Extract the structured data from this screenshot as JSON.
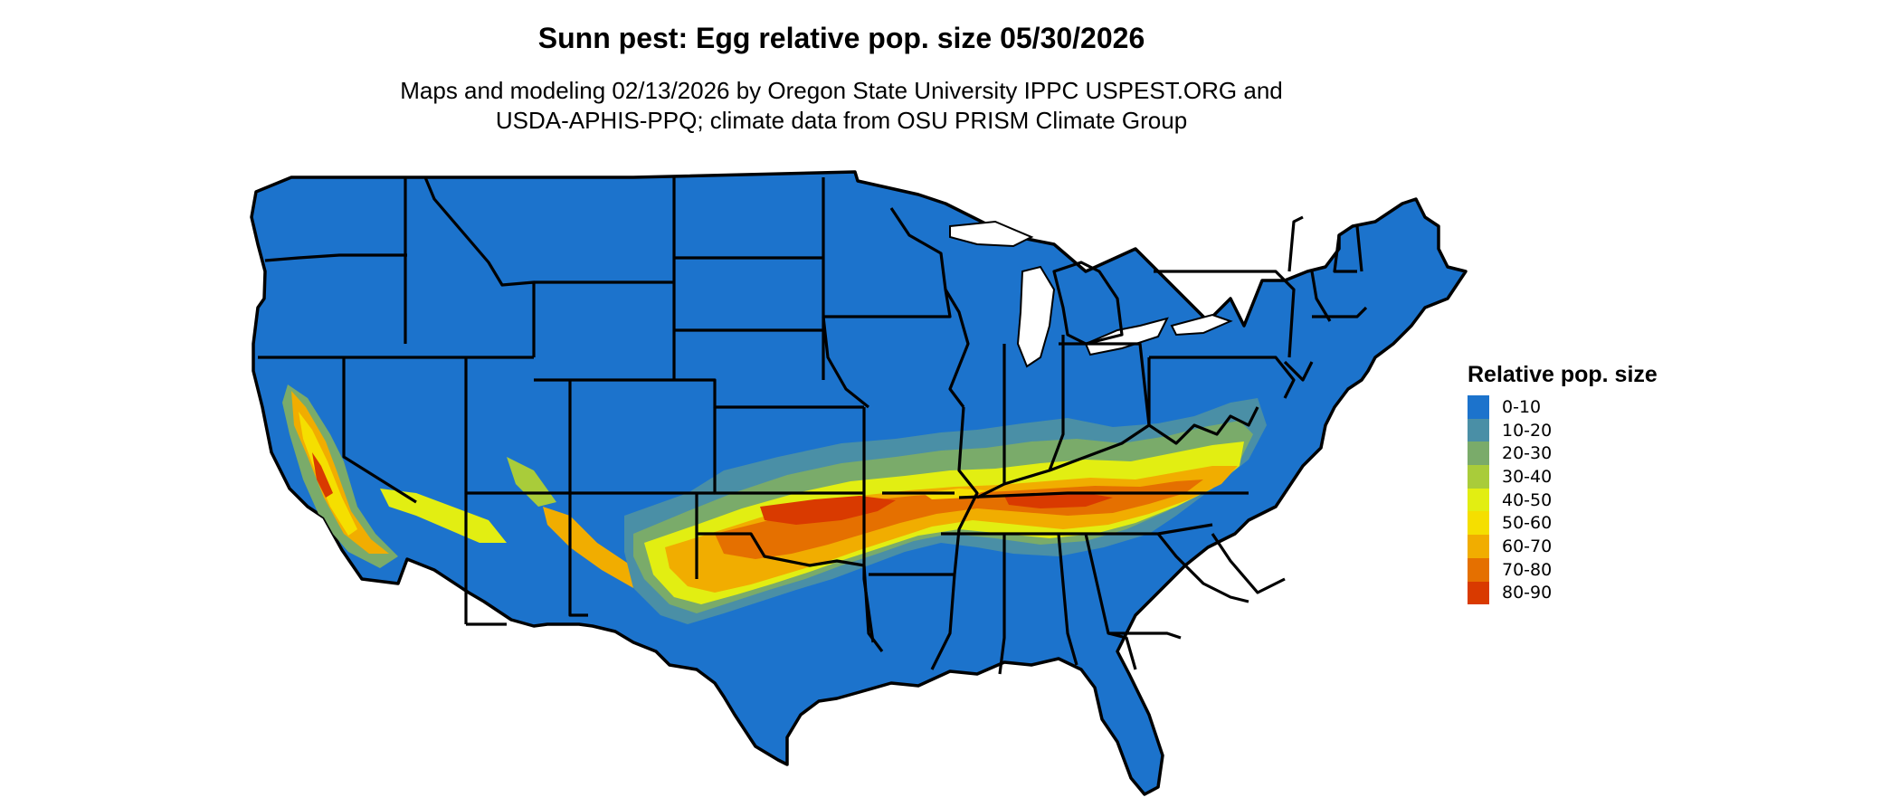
{
  "title": "Sunn pest: Egg relative pop. size 05/30/2026",
  "subtitle": {
    "line1": "Maps and modeling 02/13/2026 by Oregon State University IPPC USPEST.ORG and",
    "line2": "USDA-APHIS-PPQ; climate data from OSU PRISM Climate Group"
  },
  "map": {
    "region": "Contiguous United States",
    "base_color": "#1c73cc",
    "state_border_color": "#000000"
  },
  "legend": {
    "title": "Relative pop. size",
    "items": [
      {
        "label": "0-10",
        "color": "#1c73cc"
      },
      {
        "label": "10-20",
        "color": "#4a8fa6"
      },
      {
        "label": "20-30",
        "color": "#7aab6a"
      },
      {
        "label": "30-40",
        "color": "#a9cc3a"
      },
      {
        "label": "40-50",
        "color": "#e2ee12"
      },
      {
        "label": "50-60",
        "color": "#f5df00"
      },
      {
        "label": "60-70",
        "color": "#f1ad00"
      },
      {
        "label": "70-80",
        "color": "#e57000"
      },
      {
        "label": "80-90",
        "color": "#d93a00"
      }
    ]
  }
}
